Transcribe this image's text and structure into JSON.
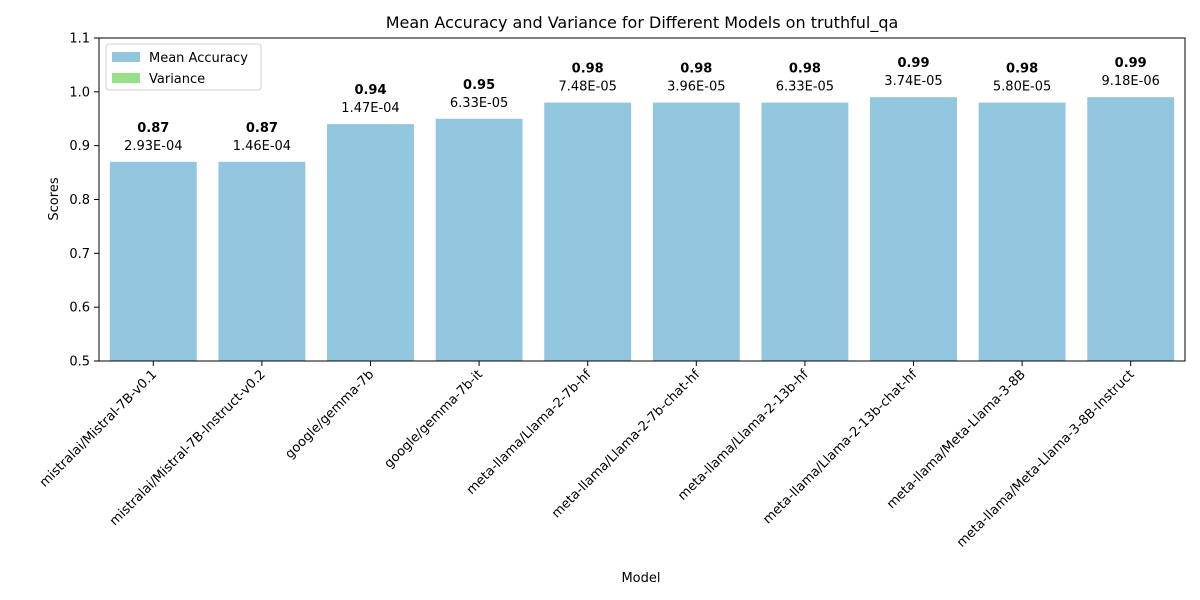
{
  "chart_data": {
    "type": "bar",
    "title": "Mean Accuracy and Variance for Different Models on truthful_qa",
    "xlabel": "Model",
    "ylabel": "Scores",
    "ylim": [
      0.5,
      1.1
    ],
    "yticks": [
      "0.5",
      "0.6",
      "0.7",
      "0.8",
      "0.9",
      "1.0",
      "1.1"
    ],
    "ytick_values": [
      0.5,
      0.6,
      0.7,
      0.8,
      0.9,
      1.0,
      1.1
    ],
    "grid": false,
    "legend_position": "top-left",
    "categories": [
      "mistralai/Mistral-7B-v0.1",
      "mistralai/Mistral-7B-Instruct-v0.2",
      "google/gemma-7b",
      "google/gemma-7b-it",
      "meta-llama/Llama-2-7b-hf",
      "meta-llama/Llama-2-7b-chat-hf",
      "meta-llama/Llama-2-13b-hf",
      "meta-llama/Llama-2-13b-chat-hf",
      "meta-llama/Meta-Llama-3-8B",
      "meta-llama/Meta-Llama-3-8B-Instruct"
    ],
    "series": [
      {
        "name": "Mean Accuracy",
        "color": "#92c5de",
        "values": [
          0.87,
          0.87,
          0.94,
          0.95,
          0.98,
          0.98,
          0.98,
          0.99,
          0.98,
          0.99
        ],
        "labels": [
          "0.87",
          "0.87",
          "0.94",
          "0.95",
          "0.98",
          "0.98",
          "0.98",
          "0.99",
          "0.98",
          "0.99"
        ]
      },
      {
        "name": "Variance",
        "color": "#98df8a",
        "values": [
          0.000293,
          0.000146,
          0.000147,
          6.33e-05,
          7.48e-05,
          3.96e-05,
          6.33e-05,
          3.74e-05,
          5.8e-05,
          9.18e-06
        ],
        "labels": [
          "2.93E-04",
          "1.46E-04",
          "1.47E-04",
          "6.33E-05",
          "7.48E-05",
          "3.96E-05",
          "6.33E-05",
          "3.74E-05",
          "5.80E-05",
          "9.18E-06"
        ]
      }
    ]
  }
}
